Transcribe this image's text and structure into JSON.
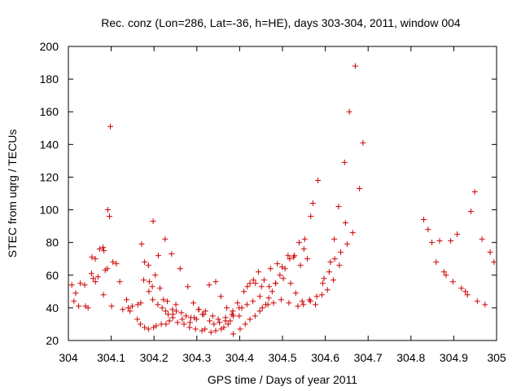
{
  "chart_data": {
    "type": "scatter",
    "title": "Rec. conz (Lon=286, Lat=-36, h=HE), days 303-304, 2011, window 004",
    "xlabel": "GPS time / Days of year 2011",
    "ylabel": "STEC from uqrg / TECUs",
    "xlim": [
      304,
      305
    ],
    "ylim": [
      20,
      200
    ],
    "xticks": [
      304,
      304.1,
      304.2,
      304.3,
      304.4,
      304.5,
      304.6,
      304.7,
      304.8,
      304.9,
      305
    ],
    "xtick_labels": [
      "304",
      "304.1",
      "304.2",
      "304.3",
      "304.4",
      "304.5",
      "304.6",
      "304.7",
      "304.8",
      "304.9",
      "305"
    ],
    "yticks": [
      20,
      40,
      60,
      80,
      100,
      120,
      140,
      160,
      180,
      200
    ],
    "ytick_labels": [
      "20",
      "40",
      "60",
      "80",
      "100",
      "120",
      "140",
      "160",
      "180",
      "200"
    ],
    "grid": false,
    "marker": "+",
    "color": "#cc0000",
    "series": [
      {
        "x": [
          304.008,
          304.017,
          304.028,
          304.038,
          304.054,
          304.058,
          304.063,
          304.069,
          304.083,
          304.086,
          304.091,
          304.101,
          304.112,
          304.127,
          304.144,
          304.161,
          304.168,
          304.178,
          304.187,
          304.199,
          304.205,
          304.217,
          304.228,
          304.236,
          304.244,
          304.255,
          304.27,
          304.283,
          304.297,
          304.312,
          304.319,
          304.333,
          304.344,
          304.357,
          304.363,
          304.373,
          304.378,
          304.385,
          304.401,
          304.413,
          304.424,
          304.436,
          304.447,
          304.453,
          304.461,
          304.468,
          304.476,
          304.484,
          304.494,
          304.506,
          304.517,
          304.528,
          304.542,
          304.55,
          304.558,
          304.566,
          304.571,
          304.583,
          304.597,
          304.612,
          304.621,
          304.631,
          304.645,
          304.656,
          304.67,
          304.68,
          304.688
        ],
        "y": [
          54,
          49,
          55,
          54,
          61,
          58,
          56,
          59,
          75,
          63,
          64,
          41,
          67,
          39,
          38,
          33,
          30,
          28,
          27,
          28,
          29,
          30,
          30,
          32,
          34,
          31,
          30,
          28,
          27,
          26,
          27,
          25,
          26,
          27,
          28,
          30,
          32,
          24,
          27,
          30,
          33,
          35,
          38,
          40,
          42,
          46,
          50,
          55,
          60,
          64,
          70,
          72,
          66,
          76,
          70,
          96,
          104,
          118,
          58,
          68,
          82,
          102,
          129,
          160,
          188,
          113,
          141
        ]
      },
      {
        "x": [
          304.013,
          304.024,
          304.04,
          304.046,
          304.055,
          304.073,
          304.081,
          304.092,
          304.096,
          304.104,
          304.12,
          304.14,
          304.162,
          304.169,
          304.178,
          304.187,
          304.198,
          304.21,
          304.226,
          304.241,
          304.261,
          304.279,
          304.292,
          304.305,
          304.32,
          304.337,
          304.35,
          304.367,
          304.385,
          304.399,
          304.417,
          304.431,
          304.447,
          304.466,
          304.479,
          304.497,
          304.515,
          304.536,
          304.549,
          304.565,
          304.58,
          304.594,
          304.609,
          304.622,
          304.636,
          304.651,
          304.664
        ],
        "y": [
          44,
          41,
          41,
          40,
          71,
          76,
          77,
          100,
          96,
          68,
          56,
          40,
          42,
          43,
          68,
          66,
          93,
          72,
          82,
          73,
          64,
          53,
          43,
          39,
          38,
          35,
          33,
          32,
          35,
          35,
          42,
          44,
          47,
          42,
          43,
          45,
          43,
          41,
          42,
          44,
          47,
          55,
          62,
          70,
          74,
          79,
          86
        ]
      },
      {
        "x": [
          304.063,
          304.082,
          304.098,
          304.136,
          304.149,
          304.171,
          304.176,
          304.189,
          304.196,
          304.203,
          304.214,
          304.222,
          304.231,
          304.243,
          304.251,
          304.264,
          304.275,
          304.286,
          304.299,
          304.313,
          304.329,
          304.344,
          304.356,
          304.37,
          304.384,
          304.399,
          304.41,
          304.424,
          304.437,
          304.451,
          304.469,
          304.484,
          304.502,
          304.519,
          304.531,
          304.546,
          304.563,
          304.577,
          304.592,
          304.605,
          304.619,
          304.633,
          304.647
        ],
        "y": [
          70,
          48,
          151,
          45,
          41,
          79,
          57,
          56,
          53,
          60,
          52,
          45,
          44,
          39,
          42,
          37,
          35,
          34,
          33,
          36,
          54,
          56,
          47,
          40,
          38,
          40,
          50,
          55,
          55,
          53,
          53,
          55,
          58,
          55,
          49,
          44,
          45,
          42,
          48,
          51,
          57,
          66,
          92
        ]
      },
      {
        "x": [
          304.188,
          304.197,
          304.209,
          304.219,
          304.227,
          304.233,
          304.244,
          304.252,
          304.266,
          304.284,
          304.294,
          304.304,
          304.316,
          304.33,
          304.34,
          304.353,
          304.367,
          304.382,
          304.395,
          304.405,
          304.418,
          304.432,
          304.444,
          304.457,
          304.472,
          304.488,
          304.499,
          304.513,
          304.526,
          304.539,
          304.552
        ],
        "y": [
          50,
          45,
          42,
          40,
          38,
          36,
          36,
          38,
          33,
          31,
          34,
          39,
          36,
          32,
          30,
          31,
          34,
          36,
          43,
          40,
          53,
          57,
          62,
          57,
          64,
          67,
          65,
          72,
          71,
          80,
          82
        ]
      },
      {
        "x": [
          304.83,
          304.84,
          304.849,
          304.859,
          304.867,
          304.877,
          304.882,
          304.893,
          304.898,
          304.908,
          304.918,
          304.927,
          304.932,
          304.94,
          304.949,
          304.955,
          304.966,
          304.973,
          304.985,
          304.994
        ],
        "y": [
          94,
          88,
          80,
          68,
          81,
          62,
          60,
          81,
          56,
          85,
          52,
          50,
          48,
          99,
          111,
          44,
          82,
          42,
          74,
          68
        ]
      }
    ]
  }
}
